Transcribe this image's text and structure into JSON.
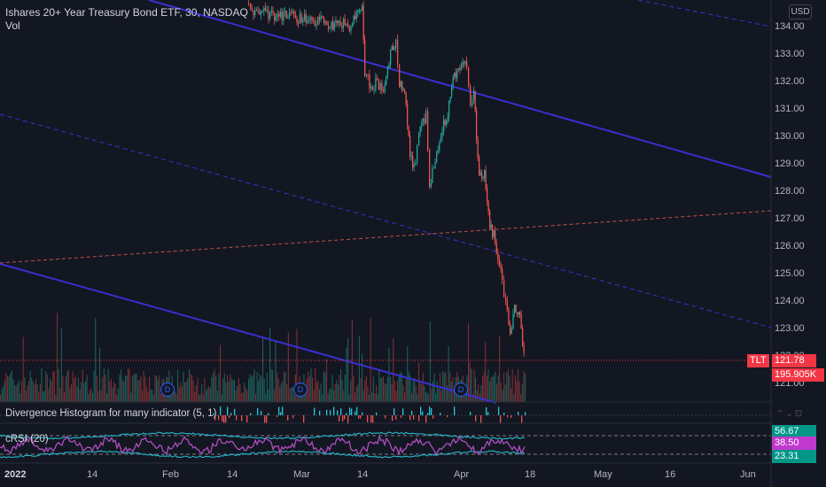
{
  "header": {
    "title": "Ishares 20+ Year Treasury Bond ETF, 30, NASDAQ",
    "volume_label": "Vol",
    "currency_button": "USD"
  },
  "indicators": {
    "divergence_label": "Divergence Histogram for many indicator (5, 1)",
    "crsi_label": "cRSI (20)"
  },
  "price_axis": {
    "ticks": [
      "134.00",
      "133.00",
      "132.00",
      "131.00",
      "130.00",
      "129.00",
      "128.00",
      "127.00",
      "126.00",
      "125.00",
      "124.00",
      "123.00",
      "122.00",
      "121.00"
    ]
  },
  "badges": {
    "ticker": "TLT",
    "last_price": "121.78",
    "volume": "195.905K",
    "crsi_upper": "56.67",
    "crsi_value": "38.50",
    "crsi_lower": "23.31"
  },
  "time_axis": {
    "labels": [
      "2022",
      "14",
      "Feb",
      "14",
      "Mar",
      "14",
      "Apr",
      "18",
      "May",
      "16",
      "Jun"
    ]
  },
  "dividend_markers": [
    "D",
    "D",
    "D"
  ],
  "colors": {
    "background": "#131722",
    "up": "#26a69a",
    "down": "#ef5350",
    "trendline": "#3a2fd0",
    "crsi_line": "#b04ec0",
    "crsi_band": "#26c6da",
    "last_price_badge": "#f23645",
    "crsi_upper_badge": "#009688",
    "crsi_value_badge": "#c038cc"
  }
}
